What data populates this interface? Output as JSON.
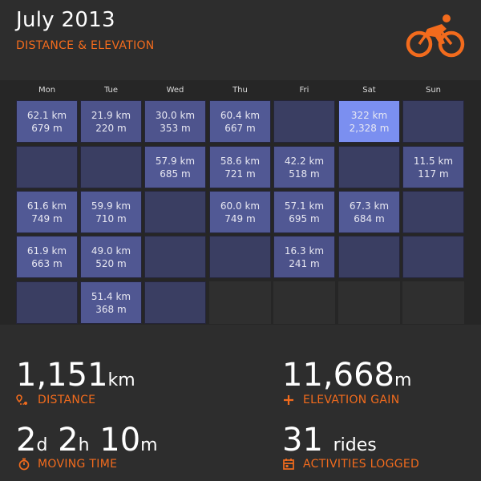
{
  "header": {
    "title": "July 2013",
    "subtitle": "DISTANCE & ELEVATION"
  },
  "colors": {
    "accent": "#f26b1d",
    "max_cell": "#7b8ff0"
  },
  "calendar": {
    "days": [
      "Mon",
      "Tue",
      "Wed",
      "Thu",
      "Fri",
      "Sat",
      "Sun"
    ],
    "weeks": [
      [
        {
          "distance": "62.1 km",
          "elevation": "679 m",
          "km": 62.1
        },
        {
          "distance": "21.9 km",
          "elevation": "220 m",
          "km": 21.9
        },
        {
          "distance": "30.0 km",
          "elevation": "353 m",
          "km": 30.0
        },
        {
          "distance": "60.4 km",
          "elevation": "667 m",
          "km": 60.4
        },
        {},
        {
          "distance": "322 km",
          "elevation": "2,328 m",
          "km": 322
        },
        {}
      ],
      [
        {},
        {},
        {
          "distance": "57.9 km",
          "elevation": "685 m",
          "km": 57.9
        },
        {
          "distance": "58.6 km",
          "elevation": "721 m",
          "km": 58.6
        },
        {
          "distance": "42.2 km",
          "elevation": "518 m",
          "km": 42.2
        },
        {},
        {
          "distance": "11.5 km",
          "elevation": "117 m",
          "km": 11.5
        }
      ],
      [
        {
          "distance": "61.6 km",
          "elevation": "749 m",
          "km": 61.6
        },
        {
          "distance": "59.9 km",
          "elevation": "710 m",
          "km": 59.9
        },
        {},
        {
          "distance": "60.0 km",
          "elevation": "749 m",
          "km": 60.0
        },
        {
          "distance": "57.1 km",
          "elevation": "695 m",
          "km": 57.1
        },
        {
          "distance": "67.3 km",
          "elevation": "684 m",
          "km": 67.3
        },
        {}
      ],
      [
        {
          "distance": "61.9 km",
          "elevation": "663 m",
          "km": 61.9
        },
        {
          "distance": "49.0 km",
          "elevation": "520 m",
          "km": 49.0
        },
        {},
        {},
        {
          "distance": "16.3 km",
          "elevation": "241 m",
          "km": 16.3
        },
        {},
        {}
      ],
      [
        {},
        {
          "distance": "51.4 km",
          "elevation": "368 m",
          "km": 51.4
        },
        {},
        null,
        null,
        null,
        null
      ]
    ]
  },
  "stats": {
    "distance": {
      "value": "1,151",
      "unit": "km",
      "label": "DISTANCE",
      "icon": "map-pin-route-icon"
    },
    "elevation": {
      "value": "11,668",
      "unit": "m",
      "label": "ELEVATION GAIN",
      "icon": "plus-icon"
    },
    "moving_time": {
      "d": "2",
      "d_unit": "d",
      "h": "2",
      "h_unit": "h",
      "m": "10",
      "m_unit": "m",
      "label": "MOVING TIME",
      "icon": "stopwatch-icon"
    },
    "activities": {
      "value": "31",
      "unit": "rides",
      "label": "ACTIVITIES LOGGED",
      "icon": "calendar-icon"
    }
  }
}
